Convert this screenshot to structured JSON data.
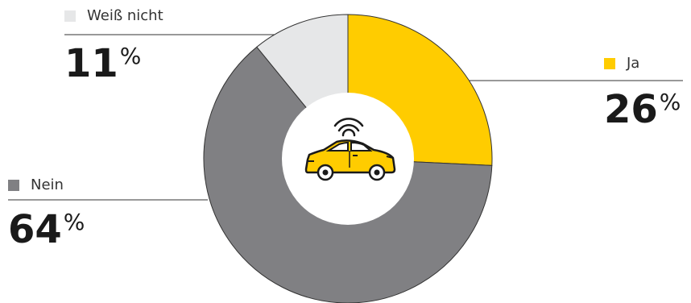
{
  "chart_data": {
    "type": "pie",
    "unit": "%",
    "categories": [
      "Ja",
      "Nein",
      "Weiß nicht"
    ],
    "values": [
      26,
      64,
      11
    ],
    "colors": [
      "#FFCC00",
      "#808083",
      "#E6E7E8"
    ],
    "center_icon": "connected-car-icon"
  }
}
